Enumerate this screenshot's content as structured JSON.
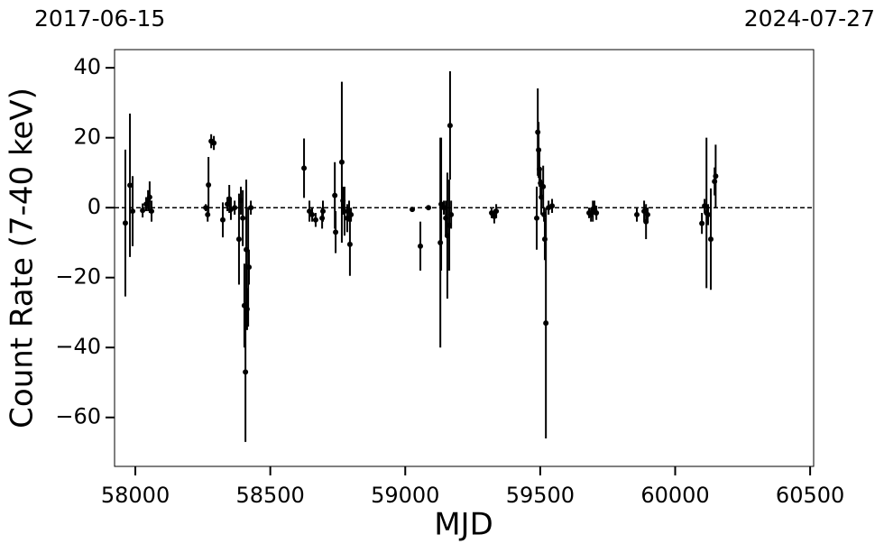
{
  "chart_data": {
    "type": "errorbar",
    "top_left_label": "2017-06-15",
    "top_right_label": "2024-07-27",
    "x_label": "MJD",
    "y_label": "Count Rate (7-40 keV)",
    "color": "#000000",
    "hline": 0,
    "xlim": [
      57923,
      60513
    ],
    "ylim": [
      -74,
      45.2
    ],
    "xticks": [
      58000,
      58500,
      59000,
      59500,
      60000,
      60500
    ],
    "yticks": [
      {
        "value": -60,
        "label": "−60"
      },
      {
        "value": -40,
        "label": "−40"
      },
      {
        "value": -20,
        "label": "−20"
      },
      0,
      20,
      40
    ],
    "x": [
      57963,
      57980,
      57990,
      58027,
      58040,
      58047,
      58053,
      58060,
      58261,
      58271,
      58268,
      58281,
      58291,
      58324,
      58341,
      58348,
      58354,
      58368,
      58384,
      58391,
      58398,
      58404,
      58408,
      58411,
      58414,
      58418,
      58421,
      58428,
      58625,
      58645,
      58655,
      58668,
      58692,
      58695,
      58739,
      58742,
      58765,
      58769,
      58775,
      58785,
      58792,
      58795,
      58799,
      59026,
      59056,
      59086,
      59130,
      59133,
      59143,
      59150,
      59156,
      59163,
      59166,
      59170,
      59320,
      59330,
      59337,
      59487,
      59491,
      59494,
      59497,
      59501,
      59504,
      59511,
      59514,
      59517,
      59521,
      59531,
      59544,
      59681,
      59688,
      59695,
      59701,
      59708,
      59858,
      59885,
      59892,
      59898,
      60099,
      60109,
      60116,
      60122,
      60132,
      60146,
      60150
    ],
    "y": [
      -4.4,
      6.4,
      -1,
      -0.8,
      1,
      2,
      3,
      -1,
      0,
      6.5,
      -2,
      19,
      18.5,
      -3.5,
      1,
      2.5,
      -0.5,
      0,
      -9,
      2,
      -3,
      -28,
      -47,
      -12,
      -29,
      -17,
      -17,
      0,
      11.3,
      -1,
      -2,
      -3.5,
      -3,
      -1,
      3.5,
      -7,
      13,
      2,
      -1,
      -3,
      -1,
      -10.5,
      -2,
      -0.5,
      -11,
      0,
      -10,
      1,
      0,
      -3,
      -8,
      -5,
      23.5,
      -2,
      -1.5,
      -2.5,
      -1,
      -3,
      21.6,
      16.5,
      11,
      7,
      3,
      6,
      -2,
      -9,
      -33,
      0,
      0.5,
      -1.5,
      -2,
      -1,
      0,
      -1.5,
      -2,
      -1,
      -4,
      -2,
      -4.5,
      0.5,
      -1.5,
      -2,
      -9,
      7.5,
      9
    ],
    "yerr": [
      21,
      20.5,
      10,
      2,
      2,
      3,
      4.5,
      3,
      1,
      8,
      2,
      2,
      2,
      5,
      2,
      4,
      3,
      2,
      13,
      4,
      8,
      12,
      20,
      20,
      6,
      17,
      5,
      2,
      8.5,
      3,
      2,
      2,
      3,
      3,
      9.5,
      6,
      23,
      4,
      7,
      4,
      3,
      9,
      2,
      0.5,
      7,
      0.5,
      30,
      19,
      2,
      5,
      18,
      13,
      15.5,
      4,
      1.5,
      2,
      2,
      9,
      12.5,
      8,
      5,
      4,
      5,
      6,
      2,
      6,
      33,
      2,
      2,
      1.5,
      2,
      3,
      2,
      2,
      2,
      3,
      5,
      2,
      3,
      2,
      21.5,
      3,
      14.5,
      4,
      9
    ]
  }
}
